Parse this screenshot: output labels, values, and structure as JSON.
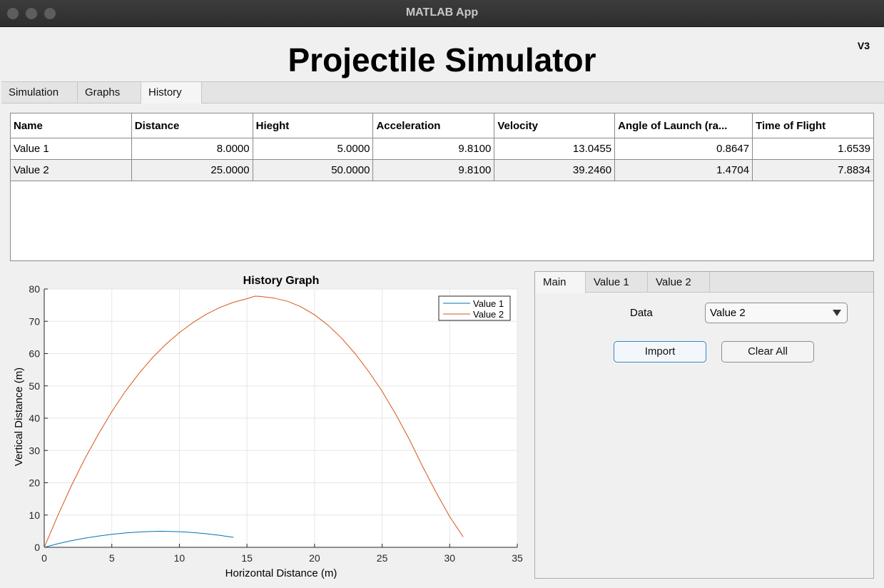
{
  "window": {
    "title": "MATLAB App"
  },
  "app": {
    "title": "Projectile Simulator",
    "version": "V3"
  },
  "tabs": [
    {
      "label": "Simulation"
    },
    {
      "label": "Graphs"
    },
    {
      "label": "History"
    }
  ],
  "active_tab": "History",
  "table": {
    "columns": [
      "Name",
      "Distance",
      "Hieght",
      "Acceleration",
      "Velocity",
      "Angle of Launch (ra...",
      "Time of Flight"
    ],
    "rows": [
      [
        "Value 1",
        "8.0000",
        "5.0000",
        "9.8100",
        "13.0455",
        "0.8647",
        "1.6539"
      ],
      [
        "Value 2",
        "25.0000",
        "50.0000",
        "9.8100",
        "39.2460",
        "1.4704",
        "7.8834"
      ]
    ]
  },
  "side_panel": {
    "tabs": [
      {
        "label": "Main"
      },
      {
        "label": "Value 1"
      },
      {
        "label": "Value 2"
      }
    ],
    "active_tab": "Main",
    "data_label": "Data",
    "data_selected": "Value 2",
    "import_label": "Import",
    "clear_label": "Clear All"
  },
  "colors": {
    "series1": "#0072bd",
    "series2": "#d95319",
    "accent": "#3b86c9"
  },
  "chart_data": {
    "type": "line",
    "title": "History Graph",
    "xlabel": "Horizontal Distance (m)",
    "ylabel": "Vertical Distance (m)",
    "xlim": [
      0,
      35
    ],
    "ylim": [
      0,
      80
    ],
    "xticks": [
      0,
      5,
      10,
      15,
      20,
      25,
      30,
      35
    ],
    "yticks": [
      0,
      10,
      20,
      30,
      40,
      50,
      60,
      70,
      80
    ],
    "grid": true,
    "legend_position": "top-right",
    "series": [
      {
        "name": "Value 1",
        "x": [
          0,
          1,
          2,
          3,
          4,
          5,
          6,
          7,
          8,
          8.6,
          9,
          10,
          11,
          12,
          13,
          14
        ],
        "y": [
          0,
          1.1,
          2.05,
          2.85,
          3.5,
          4.05,
          4.45,
          4.75,
          4.93,
          4.97,
          4.96,
          4.85,
          4.6,
          4.2,
          3.7,
          3.1
        ]
      },
      {
        "name": "Value 2",
        "x": [
          0,
          1,
          2,
          3,
          4,
          5,
          6,
          7,
          8,
          9,
          10,
          11,
          12,
          13,
          14,
          15,
          15.6,
          16,
          17,
          18,
          19,
          20,
          21,
          22,
          23,
          24,
          25,
          26,
          27,
          28,
          29,
          30,
          31
        ],
        "y": [
          0,
          9.8,
          19.0,
          27.4,
          35.0,
          42.0,
          48.3,
          53.8,
          58.7,
          62.9,
          66.5,
          69.6,
          72.2,
          74.3,
          75.9,
          77.0,
          77.8,
          77.7,
          77.2,
          76.2,
          74.5,
          72.0,
          68.8,
          64.8,
          60.0,
          54.5,
          48.3,
          41.3,
          33.5,
          25.0,
          17.0,
          9.5,
          3.2
        ]
      }
    ]
  }
}
